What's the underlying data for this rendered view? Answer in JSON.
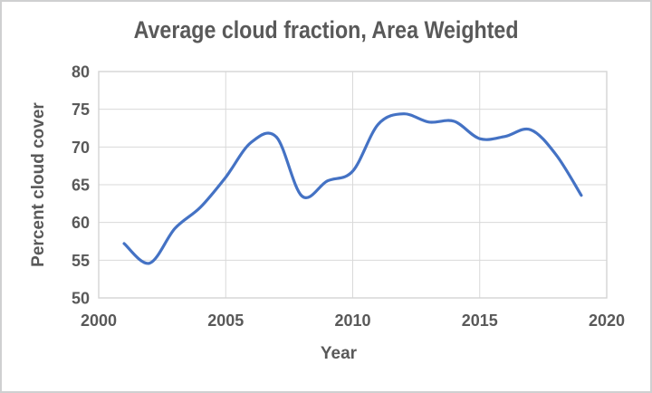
{
  "chart_data": {
    "type": "line",
    "title": "Average cloud fraction, Area Weighted",
    "xlabel": "Year",
    "ylabel": "Percent cloud cover",
    "x": [
      2001,
      2002,
      2003,
      2004,
      2005,
      2006,
      2007,
      2008,
      2009,
      2010,
      2011,
      2012,
      2013,
      2014,
      2015,
      2016,
      2017,
      2018,
      2019
    ],
    "values": [
      57.2,
      54.6,
      59.2,
      62.0,
      66.0,
      70.6,
      71.3,
      63.5,
      65.5,
      66.8,
      73.0,
      74.4,
      73.3,
      73.4,
      71.1,
      71.4,
      72.3,
      69.0,
      63.6
    ],
    "xlim": [
      2000,
      2020
    ],
    "ylim": [
      50,
      80
    ],
    "xticks": [
      2000,
      2005,
      2010,
      2015,
      2020
    ],
    "yticks": [
      50,
      55,
      60,
      65,
      70,
      75,
      80
    ],
    "grid": true,
    "smooth": true,
    "legend": "none",
    "line_color": "#4472C4"
  },
  "colors": {
    "text": "#595959",
    "gridline": "#D9D9D9",
    "plot_border": "#D4D4D4",
    "series_line": "#4472C4",
    "frame_border": "#CFD0D1",
    "background": "#FFFFFF"
  }
}
